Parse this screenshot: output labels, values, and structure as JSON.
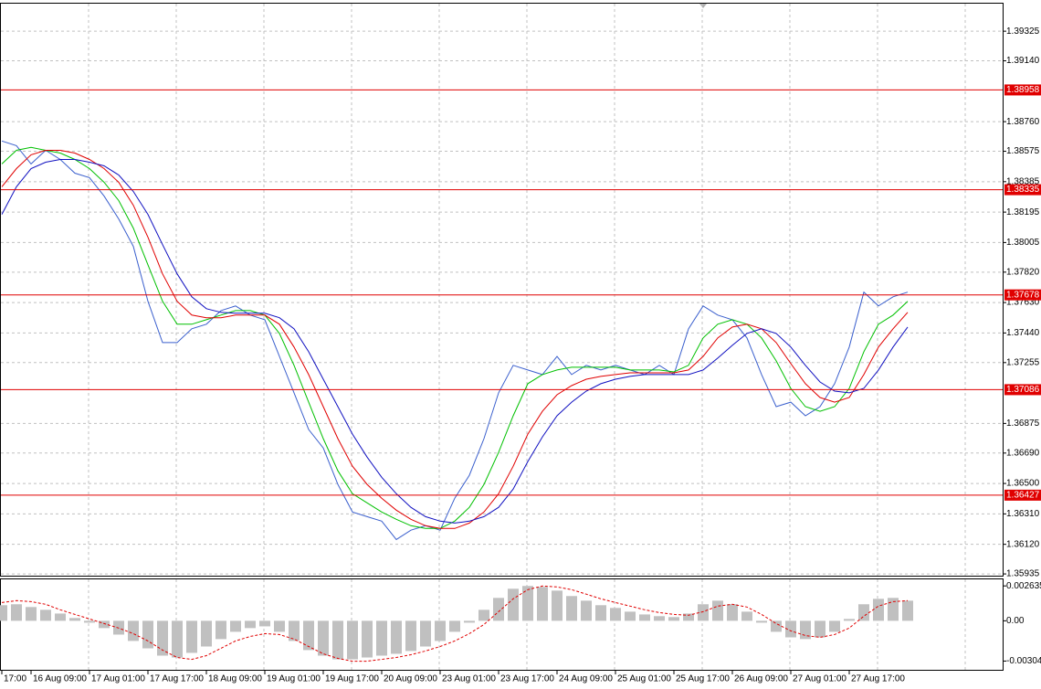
{
  "chart_data": [
    {
      "type": "line",
      "grid": true,
      "categories": [
        "17:00",
        null,
        "16 Aug 09:00",
        null,
        null,
        null,
        "17 Aug 01:00",
        null,
        null,
        null,
        "17 Aug 17:00",
        null,
        null,
        null,
        "18 Aug 09:00",
        null,
        null,
        null,
        "19 Aug 01:00",
        null,
        null,
        null,
        "19 Aug 17:00",
        null,
        null,
        null,
        "20 Aug 09:00",
        null,
        null,
        null,
        "23 Aug 01:00",
        null,
        null,
        null,
        "23 Aug 17:00",
        null,
        null,
        null,
        "24 Aug 09:00",
        null,
        null,
        null,
        "25 Aug 01:00",
        null,
        null,
        null,
        "25 Aug 17:00",
        null,
        null,
        null,
        "26 Aug 09:00",
        null,
        null,
        null,
        "27 Aug 01:00",
        null,
        null,
        null,
        "27 Aug 17:00",
        null,
        null,
        null,
        null
      ],
      "ylim": [
        1.35924,
        1.39497
      ],
      "yticks": [
        1.39325,
        {
          "value": 1.3914,
          "label": "1.39140"
        },
        {
          "value": 1.3876,
          "label": "1.38760"
        },
        1.38575,
        1.38385,
        1.38195,
        1.38005,
        {
          "value": 1.3782,
          "label": "1.37820"
        },
        {
          "value": 1.3763,
          "label": "1.37630"
        },
        {
          "value": 1.3744,
          "label": "1.37440"
        },
        1.37255,
        1.36875,
        {
          "value": 1.3669,
          "label": "1.36690"
        },
        {
          "value": 1.365,
          "label": "1.36500"
        },
        {
          "value": 1.3631,
          "label": "1.36310"
        },
        {
          "value": 1.3612,
          "label": "1.36120"
        },
        1.35935
      ],
      "levels": [
        1.38958,
        1.38335,
        1.37678,
        1.37086,
        1.36427
      ],
      "level_color": "#e00000",
      "series": [
        {
          "color": "#3a5fcd",
          "values": [
            1.38639,
            1.3861,
            1.38496,
            1.38581,
            1.38524,
            1.38438,
            1.3841,
            1.38295,
            1.38152,
            1.37981,
            1.37638,
            1.3738,
            1.3738,
            1.37466,
            1.37495,
            1.3758,
            1.37609,
            1.37552,
            1.37523,
            1.37294,
            1.37066,
            1.36837,
            1.36722,
            1.36494,
            1.36322,
            1.36293,
            1.36265,
            1.3615,
            1.36208,
            1.36236,
            1.36208,
            1.36408,
            1.36551,
            1.3678,
            1.37066,
            1.37238,
            1.37209,
            1.3718,
            1.37294,
            1.3718,
            1.37238,
            1.37209,
            1.37238,
            1.37209,
            1.3718,
            1.37238,
            1.3718,
            1.37466,
            1.37609,
            1.37552,
            1.37523,
            1.37409,
            1.3718,
            1.3698,
            1.37008,
            1.36923,
            1.3698,
            1.37123,
            1.37352,
            1.37695,
            1.37609,
            1.37666,
            1.37695
          ]
        },
        {
          "color": "#00c000",
          "values": [
            1.38496,
            1.38581,
            1.38599,
            1.38581,
            1.38564,
            1.38524,
            1.38467,
            1.38381,
            1.38267,
            1.38095,
            1.37866,
            1.37638,
            1.37495,
            1.37495,
            1.37523,
            1.37552,
            1.3758,
            1.3758,
            1.37552,
            1.37437,
            1.37238,
            1.37008,
            1.3678,
            1.36579,
            1.36436,
            1.36379,
            1.36322,
            1.36276,
            1.36236,
            1.36219,
            1.36219,
            1.36265,
            1.36351,
            1.36494,
            1.36694,
            1.36923,
            1.37123,
            1.3718,
            1.37209,
            1.37226,
            1.37226,
            1.37226,
            1.37226,
            1.37209,
            1.37209,
            1.37209,
            1.37197,
            1.37238,
            1.37409,
            1.37495,
            1.37523,
            1.37495,
            1.37409,
            1.37266,
            1.37094,
            1.3698,
            1.36951,
            1.3698,
            1.37094,
            1.37323,
            1.37495,
            1.37552,
            1.37638
          ]
        },
        {
          "color": "#e00000",
          "values": [
            1.38353,
            1.38467,
            1.38553,
            1.38581,
            1.38581,
            1.38564,
            1.38524,
            1.38467,
            1.38381,
            1.38238,
            1.38038,
            1.37809,
            1.37638,
            1.37552,
            1.37535,
            1.37535,
            1.37552,
            1.37552,
            1.37552,
            1.37495,
            1.37352,
            1.3718,
            1.3698,
            1.3678,
            1.36608,
            1.36494,
            1.36408,
            1.36333,
            1.36276,
            1.36236,
            1.36219,
            1.36219,
            1.36253,
            1.36322,
            1.36436,
            1.36608,
            1.36808,
            1.36951,
            1.37054,
            1.37111,
            1.37151,
            1.37169,
            1.3718,
            1.37191,
            1.37191,
            1.37191,
            1.37191,
            1.37209,
            1.37294,
            1.37409,
            1.37477,
            1.37495,
            1.37466,
            1.3738,
            1.37249,
            1.37123,
            1.37037,
            1.37008,
            1.37037,
            1.3718,
            1.37352,
            1.37466,
            1.37569
          ]
        },
        {
          "color": "#1010c0",
          "values": [
            1.38181,
            1.38353,
            1.38467,
            1.38507,
            1.38524,
            1.38524,
            1.38507,
            1.38484,
            1.38427,
            1.38324,
            1.38181,
            1.37992,
            1.37809,
            1.37666,
            1.37592,
            1.37569,
            1.37563,
            1.37563,
            1.37563,
            1.37535,
            1.37466,
            1.37323,
            1.37151,
            1.3698,
            1.36808,
            1.36665,
            1.36539,
            1.36436,
            1.36351,
            1.36293,
            1.36265,
            1.36253,
            1.36265,
            1.36293,
            1.36351,
            1.36465,
            1.36637,
            1.36791,
            1.36923,
            1.37008,
            1.37077,
            1.37123,
            1.37151,
            1.37169,
            1.3718,
            1.3718,
            1.3718,
            1.3718,
            1.37209,
            1.37283,
            1.37363,
            1.37437,
            1.37466,
            1.37437,
            1.37352,
            1.37238,
            1.37134,
            1.37077,
            1.37066,
            1.37094,
            1.37209,
            1.37352,
            1.37477
          ]
        }
      ]
    },
    {
      "type": "macd",
      "grid": true,
      "ylim": [
        -0.0037,
        0.0032
      ],
      "yticks": [
        0.002635,
        {
          "value": 0,
          "label": "0.00"
        },
        -0.00304
      ],
      "series": [
        {
          "type": "bar",
          "color": "#c0c0c0",
          "values": [
            0.00118,
            0.00125,
            0.00104,
            0.00083,
            0.00055,
            0.00021,
            -0.00014,
            -0.00055,
            -0.00104,
            -0.00152,
            -0.00208,
            -0.00263,
            -0.00277,
            -0.00242,
            -0.00194,
            -0.00138,
            -0.00083,
            -0.00055,
            -0.00042,
            -0.00083,
            -0.00152,
            -0.00221,
            -0.00263,
            -0.00291,
            -0.00291,
            -0.00277,
            -0.00263,
            -0.00249,
            -0.00228,
            -0.00194,
            -0.00152,
            -0.00083,
            -0.00014,
            0.00083,
            0.00173,
            0.00242,
            0.00263,
            0.00256,
            0.00228,
            0.00187,
            0.00152,
            0.00118,
            0.00097,
            0.00069,
            0.00048,
            0.00035,
            0.00028,
            0.00055,
            0.00125,
            0.00152,
            0.00125,
            0.00069,
            -0.00014,
            -0.00083,
            -0.00125,
            -0.00138,
            -0.00125,
            -0.00083,
            0.00014,
            0.00125,
            0.00166,
            0.00173,
            0.00152
          ]
        },
        {
          "type": "line",
          "color": "#e00000",
          "dashed": true,
          "values": [
            0.00138,
            0.00152,
            0.00145,
            0.00125,
            0.00083,
            0.00048,
            0.00014,
            -0.00021,
            -0.00055,
            -0.00097,
            -0.00152,
            -0.00221,
            -0.00277,
            -0.00291,
            -0.00263,
            -0.00208,
            -0.00152,
            -0.00118,
            -0.00097,
            -0.00104,
            -0.00138,
            -0.00194,
            -0.00249,
            -0.00284,
            -0.00305,
            -0.00305,
            -0.00291,
            -0.00277,
            -0.00256,
            -0.00228,
            -0.00194,
            -0.00152,
            -0.00097,
            -0.00028,
            0.00069,
            0.00166,
            0.00235,
            0.00263,
            0.00256,
            0.00235,
            0.00201,
            0.00166,
            0.00138,
            0.00111,
            0.00083,
            0.00062,
            0.00048,
            0.00042,
            0.00069,
            0.00111,
            0.00125,
            0.00104,
            0.00048,
            -0.00021,
            -0.00076,
            -0.00111,
            -0.00125,
            -0.00104,
            -0.00055,
            0.00035,
            0.00111,
            0.00145,
            0.00152
          ]
        }
      ]
    }
  ]
}
